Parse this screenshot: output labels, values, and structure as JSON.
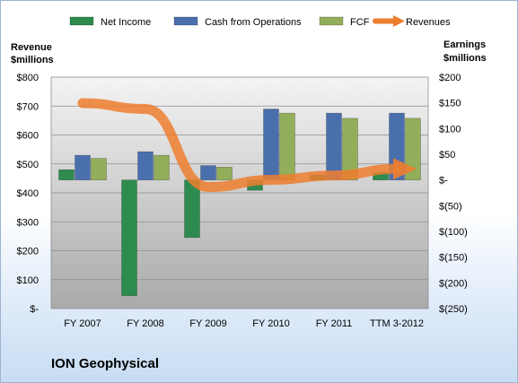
{
  "company": "ION Geophysical",
  "chart_data": {
    "type": "bar",
    "categories": [
      "FY 2007",
      "FY 2008",
      "FY 2009",
      "FY 2010",
      "FY 2011",
      "TTM 3-2012"
    ],
    "left_axis": {
      "title_line1": "Revenue",
      "title_line2": "$millions",
      "range": [
        0,
        800
      ],
      "ticks": [
        0,
        100,
        200,
        300,
        400,
        500,
        600,
        700,
        800
      ],
      "tick_labels": [
        "$-",
        "$100",
        "$200",
        "$300",
        "$400",
        "$500",
        "$600",
        "$700",
        "$800"
      ]
    },
    "right_axis": {
      "title_line1": "Earnings",
      "title_line2": "$millions",
      "range": [
        -250,
        200
      ],
      "ticks": [
        -250,
        -200,
        -150,
        -100,
        -50,
        0,
        50,
        100,
        150,
        200
      ],
      "tick_labels": [
        "$(250)",
        "$(200)",
        "$(150)",
        "$(100)",
        "$(50)",
        "$-",
        "$50",
        "$100",
        "$150",
        "$200"
      ]
    },
    "series": [
      {
        "name": "Net Income",
        "axis": "right",
        "type": "bar",
        "color": "#2e8b4e",
        "values": [
          20,
          -225,
          -112,
          -20,
          10,
          15
        ]
      },
      {
        "name": "Cash from Operations",
        "axis": "right",
        "type": "bar",
        "color": "#4a6fad",
        "values": [
          48,
          55,
          28,
          138,
          130,
          130
        ]
      },
      {
        "name": "FCF",
        "axis": "right",
        "type": "bar",
        "color": "#93ae5a",
        "values": [
          42,
          48,
          25,
          130,
          120,
          120
        ]
      },
      {
        "name": "Revenues",
        "axis": "left",
        "type": "line",
        "color": "#ee7e2f",
        "values": [
          710,
          690,
          420,
          445,
          460,
          483
        ]
      }
    ],
    "grid": true,
    "legend_position": "top"
  }
}
